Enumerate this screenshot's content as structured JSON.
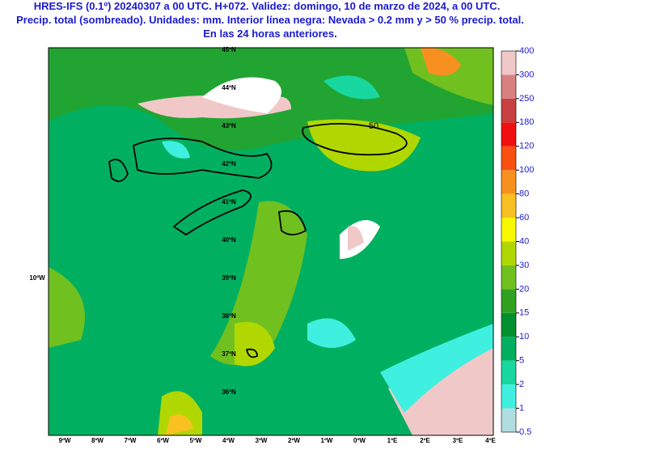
{
  "header": {
    "lines": [
      "HRES-IFS (0.1º) 20240307 a 00 UTC. H+072. Validez: domingo, 10 de marzo de 2024, a 00 UTC.",
      "Precip. total (sombreado). Unidades: mm. Interior línea negra: Nevada > 0.2 mm y > 50 % precip. total.",
      "En las 24 horas anteriores."
    ]
  },
  "colorbar": {
    "levels": [
      0.5,
      1,
      2,
      5,
      10,
      15,
      20,
      30,
      40,
      60,
      80,
      100,
      120,
      180,
      250,
      300,
      400
    ],
    "colors": [
      "#b0dde0",
      "#3ff0e0",
      "#18d8a0",
      "#00b060",
      "#009030",
      "#30a020",
      "#70c020",
      "#b0d800",
      "#f8f800",
      "#f8c020",
      "#f89020",
      "#f85010",
      "#f01010",
      "#c84040",
      "#d88080",
      "#f0c8c8"
    ]
  },
  "map": {
    "lon_labels": [
      "9ºW",
      "8ºW",
      "7ºW",
      "6ºW",
      "5ºW",
      "4ºW",
      "3ºW",
      "2ºW",
      "1ºW",
      "0ºW",
      "1ºE",
      "2ºE",
      "3ºE",
      "4ºE"
    ],
    "lat_labels": [
      "45ºN",
      "44ºN",
      "43ºN",
      "42ºN",
      "41ºN",
      "40ºN",
      "39ºN",
      "38ºN",
      "37ºN",
      "36ºN"
    ],
    "side_label": "10ºW",
    "contour_label": "50"
  }
}
